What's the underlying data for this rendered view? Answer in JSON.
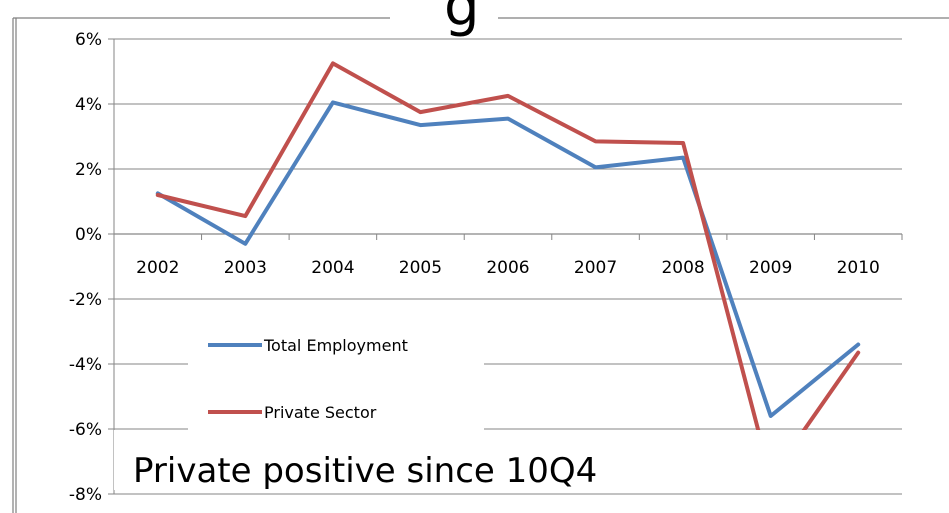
{
  "slide": {
    "title_fragment": "g"
  },
  "chart_data": {
    "type": "line",
    "categories": [
      "2002",
      "2003",
      "2004",
      "2005",
      "2006",
      "2007",
      "2008",
      "2009",
      "2010"
    ],
    "series": [
      {
        "name": "Total Employment",
        "color": "#4F81BD",
        "values": [
          1.25,
          -0.3,
          4.05,
          3.35,
          3.55,
          2.05,
          2.35,
          -5.6,
          -3.4
        ]
      },
      {
        "name": "Private Sector",
        "color": "#C0504D",
        "values": [
          1.2,
          0.55,
          5.25,
          3.75,
          4.25,
          2.85,
          2.8,
          -7.5,
          -3.65
        ]
      }
    ],
    "y_ticks": [
      "6%",
      "4%",
      "2%",
      "0%",
      "-2%",
      "-4%",
      "-6%",
      "-8%"
    ],
    "ylim": [
      -8,
      6
    ],
    "grid": true,
    "legend_position": "left",
    "annotation": "Private positive since 10Q4"
  }
}
